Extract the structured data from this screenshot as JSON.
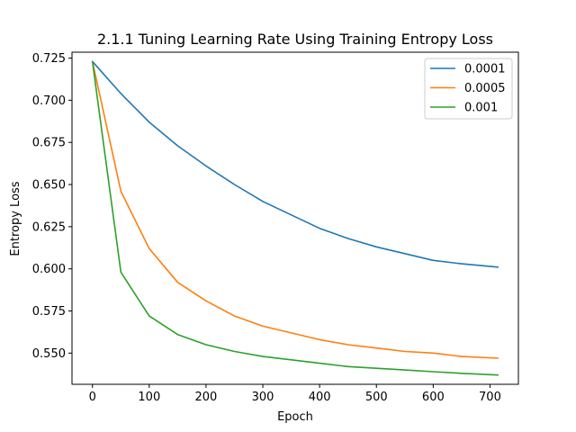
{
  "chart_data": {
    "type": "line",
    "title": "2.1.1 Tuning Learning Rate Using Training Entropy Loss",
    "xlabel": "Epoch",
    "ylabel": "Entropy Loss",
    "xlim": [
      -36,
      750
    ],
    "ylim": [
      0.5315,
      0.7285
    ],
    "xticks": [
      0,
      100,
      200,
      300,
      400,
      500,
      600,
      700
    ],
    "yticks": [
      0.55,
      0.575,
      0.6,
      0.625,
      0.65,
      0.675,
      0.7,
      0.725
    ],
    "xtick_labels": [
      "0",
      "100",
      "200",
      "300",
      "400",
      "500",
      "600",
      "700"
    ],
    "ytick_labels": [
      "0.550",
      "0.575",
      "0.600",
      "0.625",
      "0.650",
      "0.675",
      "0.700",
      "0.725"
    ],
    "grid": false,
    "legend_position": "top-right",
    "x": [
      0,
      50,
      100,
      150,
      200,
      250,
      300,
      350,
      400,
      450,
      500,
      550,
      600,
      650,
      714
    ],
    "series": [
      {
        "name": "0.0001",
        "color": "#1f77b4",
        "values": [
          0.723,
          0.704,
          0.687,
          0.673,
          0.661,
          0.65,
          0.64,
          0.632,
          0.624,
          0.618,
          0.613,
          0.609,
          0.605,
          0.603,
          0.601
        ]
      },
      {
        "name": "0.0005",
        "color": "#ff7f0e",
        "values": [
          0.723,
          0.646,
          0.612,
          0.592,
          0.581,
          0.572,
          0.566,
          0.562,
          0.558,
          0.555,
          0.553,
          0.551,
          0.55,
          0.548,
          0.547
        ]
      },
      {
        "name": "0.001",
        "color": "#2ca02c",
        "values": [
          0.723,
          0.598,
          0.572,
          0.561,
          0.555,
          0.551,
          0.548,
          0.546,
          0.544,
          0.542,
          0.541,
          0.54,
          0.539,
          0.538,
          0.537
        ]
      }
    ]
  }
}
